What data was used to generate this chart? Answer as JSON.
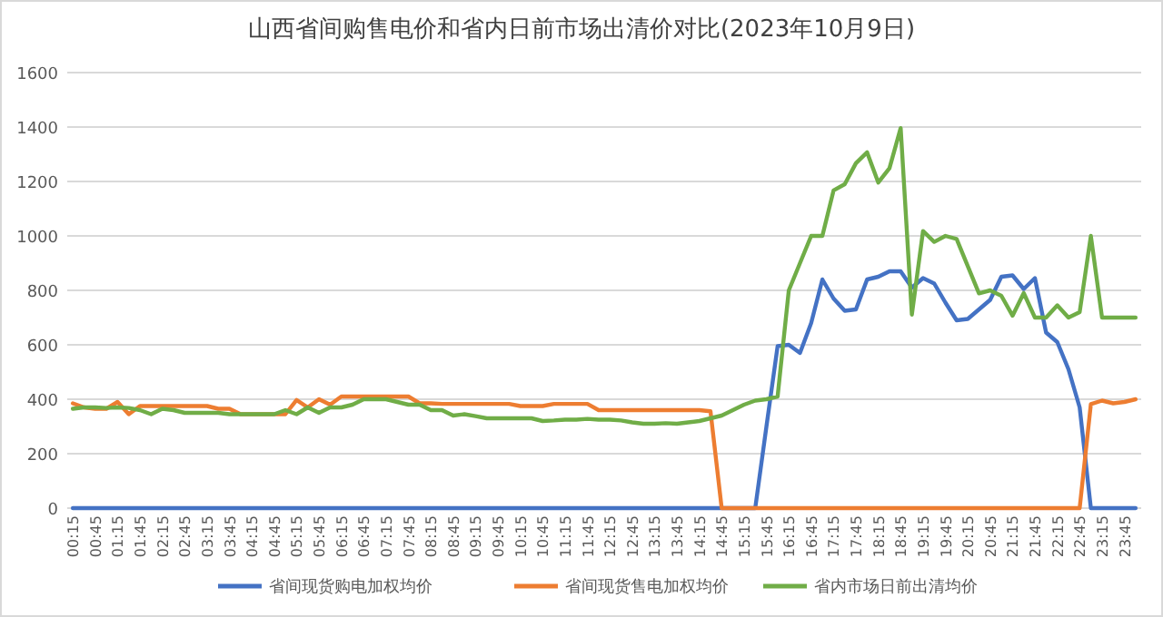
{
  "chart_data": {
    "type": "line",
    "title": "山西省间购售电价和省内日前市场出清价对比(2023年10月9日)",
    "categories": [
      "00:15",
      null,
      "00:45",
      null,
      "01:15",
      null,
      "01:45",
      null,
      "02:15",
      null,
      "02:45",
      null,
      "03:15",
      null,
      "03:45",
      null,
      "04:15",
      null,
      "04:45",
      null,
      "05:15",
      null,
      "05:45",
      null,
      "06:15",
      null,
      "06:45",
      null,
      "07:15",
      null,
      "07:45",
      null,
      "08:15",
      null,
      "08:45",
      null,
      "09:15",
      null,
      "09:45",
      null,
      "10:15",
      null,
      "10:45",
      null,
      "11:15",
      null,
      "11:45",
      null,
      "12:15",
      null,
      "12:45",
      null,
      "13:15",
      null,
      "13:45",
      null,
      "14:15",
      null,
      "14:45",
      null,
      "15:15",
      null,
      "15:45",
      null,
      "16:15",
      null,
      "16:45",
      null,
      "17:15",
      null,
      "17:45",
      null,
      "18:15",
      null,
      "18:45",
      null,
      "19:15",
      null,
      "19:45",
      null,
      "20:15",
      null,
      "20:45",
      null,
      "21:15",
      null,
      "21:45",
      null,
      "22:15",
      null,
      "22:45",
      null,
      "23:15",
      null,
      "23:45",
      null
    ],
    "series": [
      {
        "name": "省间现货购电加权均价",
        "color": "#4472c4",
        "values": [
          0,
          0,
          0,
          0,
          0,
          0,
          0,
          0,
          0,
          0,
          0,
          0,
          0,
          0,
          0,
          0,
          0,
          0,
          0,
          0,
          0,
          0,
          0,
          0,
          0,
          0,
          0,
          0,
          0,
          0,
          0,
          0,
          0,
          0,
          0,
          0,
          0,
          0,
          0,
          0,
          0,
          0,
          0,
          0,
          0,
          0,
          0,
          0,
          0,
          0,
          0,
          0,
          0,
          0,
          0,
          0,
          0,
          0,
          0,
          0,
          0,
          0,
          300,
          595,
          600,
          570,
          680,
          840,
          770,
          725,
          730,
          840,
          850,
          870,
          870,
          810,
          845,
          825,
          755,
          690,
          695,
          730,
          765,
          850,
          855,
          805,
          845,
          645,
          610,
          510,
          370,
          0,
          0,
          0,
          0,
          0
        ]
      },
      {
        "name": "省间现货售电加权均价",
        "color": "#ed7d31",
        "values": [
          385,
          370,
          365,
          365,
          390,
          345,
          375,
          375,
          375,
          375,
          375,
          375,
          375,
          365,
          365,
          345,
          345,
          345,
          345,
          345,
          397,
          370,
          400,
          380,
          410,
          410,
          410,
          410,
          410,
          410,
          410,
          385,
          385,
          383,
          383,
          383,
          383,
          383,
          383,
          383,
          375,
          375,
          375,
          383,
          383,
          383,
          383,
          360,
          360,
          360,
          360,
          360,
          360,
          360,
          360,
          360,
          360,
          356,
          0,
          0,
          0,
          0,
          0,
          0,
          0,
          0,
          0,
          0,
          0,
          0,
          0,
          0,
          0,
          0,
          0,
          0,
          0,
          0,
          0,
          0,
          0,
          0,
          0,
          0,
          0,
          0,
          0,
          0,
          0,
          0,
          0,
          382,
          395,
          385,
          390,
          400
        ]
      },
      {
        "name": "省内市场日前出清均价",
        "color": "#70ad47",
        "values": [
          365,
          370,
          370,
          368,
          370,
          368,
          360,
          345,
          365,
          360,
          350,
          350,
          350,
          350,
          345,
          345,
          345,
          345,
          345,
          360,
          345,
          370,
          350,
          370,
          370,
          380,
          400,
          400,
          400,
          390,
          380,
          380,
          360,
          360,
          340,
          345,
          338,
          330,
          330,
          330,
          330,
          330,
          320,
          322,
          325,
          325,
          328,
          325,
          325,
          322,
          315,
          310,
          310,
          312,
          310,
          315,
          320,
          330,
          340,
          360,
          380,
          395,
          400,
          410,
          800,
          900,
          1000,
          1000,
          1167,
          1190,
          1267,
          1307,
          1196,
          1249,
          1396,
          711,
          1018,
          978,
          1000,
          989,
          889,
          789,
          800,
          780,
          707,
          790,
          700,
          700,
          745,
          700,
          720,
          1000,
          700,
          700,
          700,
          700
        ]
      }
    ],
    "ylim": [
      0,
      1600
    ],
    "yticks": [
      0,
      200,
      400,
      600,
      800,
      1000,
      1200,
      1400,
      1600
    ],
    "grid": "y",
    "legend": "bottom",
    "marker": "none",
    "line_style": "solid"
  }
}
